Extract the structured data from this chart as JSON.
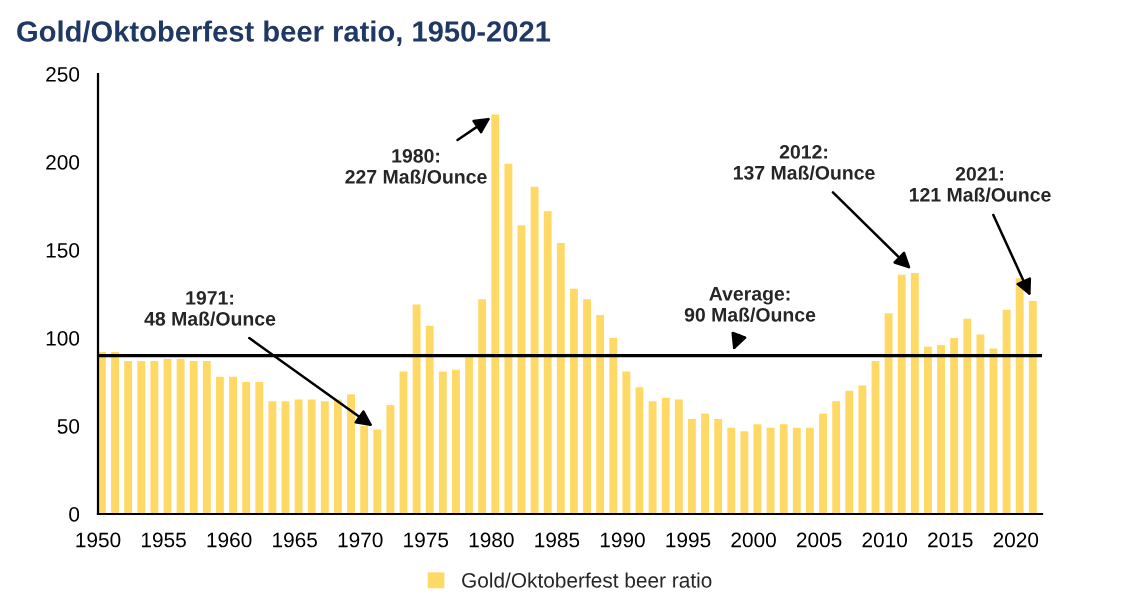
{
  "chart_data": {
    "type": "bar",
    "title": "Gold/Oktoberfest beer ratio, 1950-2021",
    "x": [
      1950,
      1951,
      1952,
      1953,
      1954,
      1955,
      1956,
      1957,
      1958,
      1959,
      1960,
      1961,
      1962,
      1963,
      1964,
      1965,
      1966,
      1967,
      1968,
      1969,
      1970,
      1971,
      1972,
      1973,
      1974,
      1975,
      1976,
      1977,
      1978,
      1979,
      1980,
      1981,
      1982,
      1983,
      1984,
      1985,
      1986,
      1987,
      1988,
      1989,
      1990,
      1991,
      1992,
      1993,
      1994,
      1995,
      1996,
      1997,
      1998,
      1999,
      2000,
      2001,
      2002,
      2003,
      2004,
      2005,
      2006,
      2007,
      2008,
      2009,
      2010,
      2011,
      2012,
      2013,
      2014,
      2015,
      2016,
      2017,
      2018,
      2019,
      2020,
      2021
    ],
    "series": [
      {
        "name": "Gold/Oktoberfest beer ratio",
        "color": "#ffd966",
        "values": [
          92,
          92,
          87,
          87,
          87,
          88,
          88,
          87,
          87,
          78,
          78,
          75,
          75,
          64,
          64,
          65,
          65,
          64,
          65,
          68,
          50,
          48,
          62,
          81,
          119,
          107,
          81,
          82,
          89,
          122,
          227,
          199,
          164,
          186,
          172,
          154,
          128,
          122,
          113,
          100,
          81,
          72,
          64,
          66,
          65,
          54,
          57,
          54,
          49,
          47,
          51,
          49,
          51,
          49,
          49,
          57,
          64,
          70,
          73,
          87,
          114,
          136,
          137,
          95,
          96,
          100,
          111,
          102,
          94,
          116,
          134,
          121
        ]
      }
    ],
    "xlim": [
      1950,
      2022
    ],
    "xticks": [
      1950,
      1955,
      1960,
      1965,
      1970,
      1975,
      1980,
      1985,
      1990,
      1995,
      2000,
      2005,
      2010,
      2015,
      2020
    ],
    "ylim": [
      0,
      250
    ],
    "yticks": [
      0,
      50,
      100,
      150,
      200,
      250
    ],
    "ref_lines": [
      {
        "axis": "y",
        "value": 90,
        "color": "#000000"
      }
    ],
    "annotations": [
      {
        "text": "1971:\n48 Maß/Ounce",
        "x": 1971,
        "y": 48
      },
      {
        "text": "1980:\n227 Maß/Ounce",
        "x": 1980,
        "y": 227
      },
      {
        "text": "Average:\n90 Maß/Ounce",
        "x": 1998,
        "y": 90
      },
      {
        "text": "2012:\n137 Maß/Ounce",
        "x": 2012,
        "y": 137
      },
      {
        "text": "2021:\n121 Maß/Ounce",
        "x": 2021,
        "y": 121
      }
    ],
    "legend": "bottom",
    "grid": false
  }
}
